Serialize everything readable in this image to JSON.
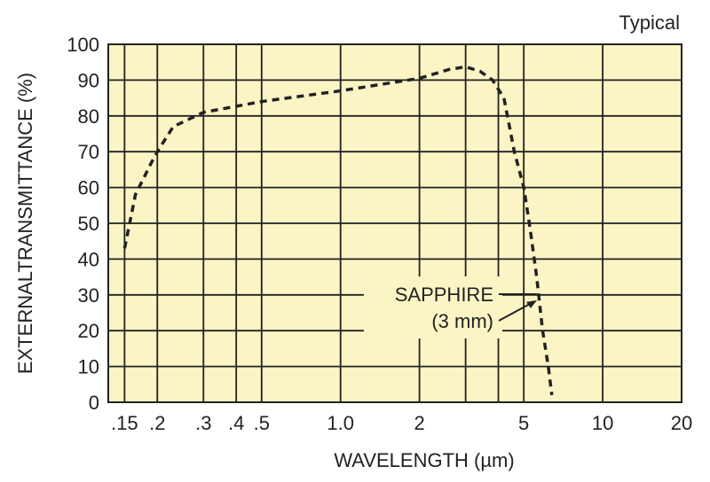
{
  "chart_data": {
    "type": "line",
    "note": "Typical",
    "xlabel": "WAVELENGTH (µm)",
    "ylabel": "EXTERNALTRANSMITTANCE (%)",
    "xscale": "log",
    "xlim": [
      0.13,
      20
    ],
    "ylim": [
      0,
      100
    ],
    "grid": true,
    "x_ticks": [
      {
        "value": 0.15,
        "label": ".15"
      },
      {
        "value": 0.2,
        "label": ".2"
      },
      {
        "value": 0.3,
        "label": ".3"
      },
      {
        "value": 0.4,
        "label": ".4"
      },
      {
        "value": 0.5,
        "label": ".5"
      },
      {
        "value": 1.0,
        "label": "1.0"
      },
      {
        "value": 2,
        "label": "2"
      },
      {
        "value": 5,
        "label": "5"
      },
      {
        "value": 10,
        "label": "10"
      },
      {
        "value": 20,
        "label": "20"
      }
    ],
    "x_minor_grid": [
      3,
      4
    ],
    "y_ticks": [
      {
        "value": 0,
        "label": "0"
      },
      {
        "value": 10,
        "label": "10"
      },
      {
        "value": 20,
        "label": "20"
      },
      {
        "value": 30,
        "label": "30"
      },
      {
        "value": 40,
        "label": "40"
      },
      {
        "value": 50,
        "label": "50"
      },
      {
        "value": 60,
        "label": "60"
      },
      {
        "value": 70,
        "label": "70"
      },
      {
        "value": 80,
        "label": "80"
      },
      {
        "value": 90,
        "label": "90"
      },
      {
        "value": 100,
        "label": "100"
      }
    ],
    "series": [
      {
        "label_lines": [
          "SAPPHIRE",
          "(3 mm)"
        ],
        "label_target": {
          "x": 5.7,
          "y": 28.5
        },
        "points": [
          {
            "x": 0.15,
            "y": 43
          },
          {
            "x": 0.165,
            "y": 58
          },
          {
            "x": 0.19,
            "y": 67
          },
          {
            "x": 0.2,
            "y": 70
          },
          {
            "x": 0.23,
            "y": 77
          },
          {
            "x": 0.3,
            "y": 81
          },
          {
            "x": 0.5,
            "y": 84
          },
          {
            "x": 1.0,
            "y": 87
          },
          {
            "x": 2.0,
            "y": 90.5
          },
          {
            "x": 2.6,
            "y": 93
          },
          {
            "x": 3.0,
            "y": 93.7
          },
          {
            "x": 3.4,
            "y": 92.5
          },
          {
            "x": 3.8,
            "y": 90
          },
          {
            "x": 4.2,
            "y": 85
          },
          {
            "x": 4.6,
            "y": 70
          },
          {
            "x": 5.0,
            "y": 60
          },
          {
            "x": 5.3,
            "y": 48
          },
          {
            "x": 5.6,
            "y": 35
          },
          {
            "x": 5.9,
            "y": 20
          },
          {
            "x": 6.2,
            "y": 10
          },
          {
            "x": 6.4,
            "y": 2
          }
        ]
      }
    ]
  }
}
